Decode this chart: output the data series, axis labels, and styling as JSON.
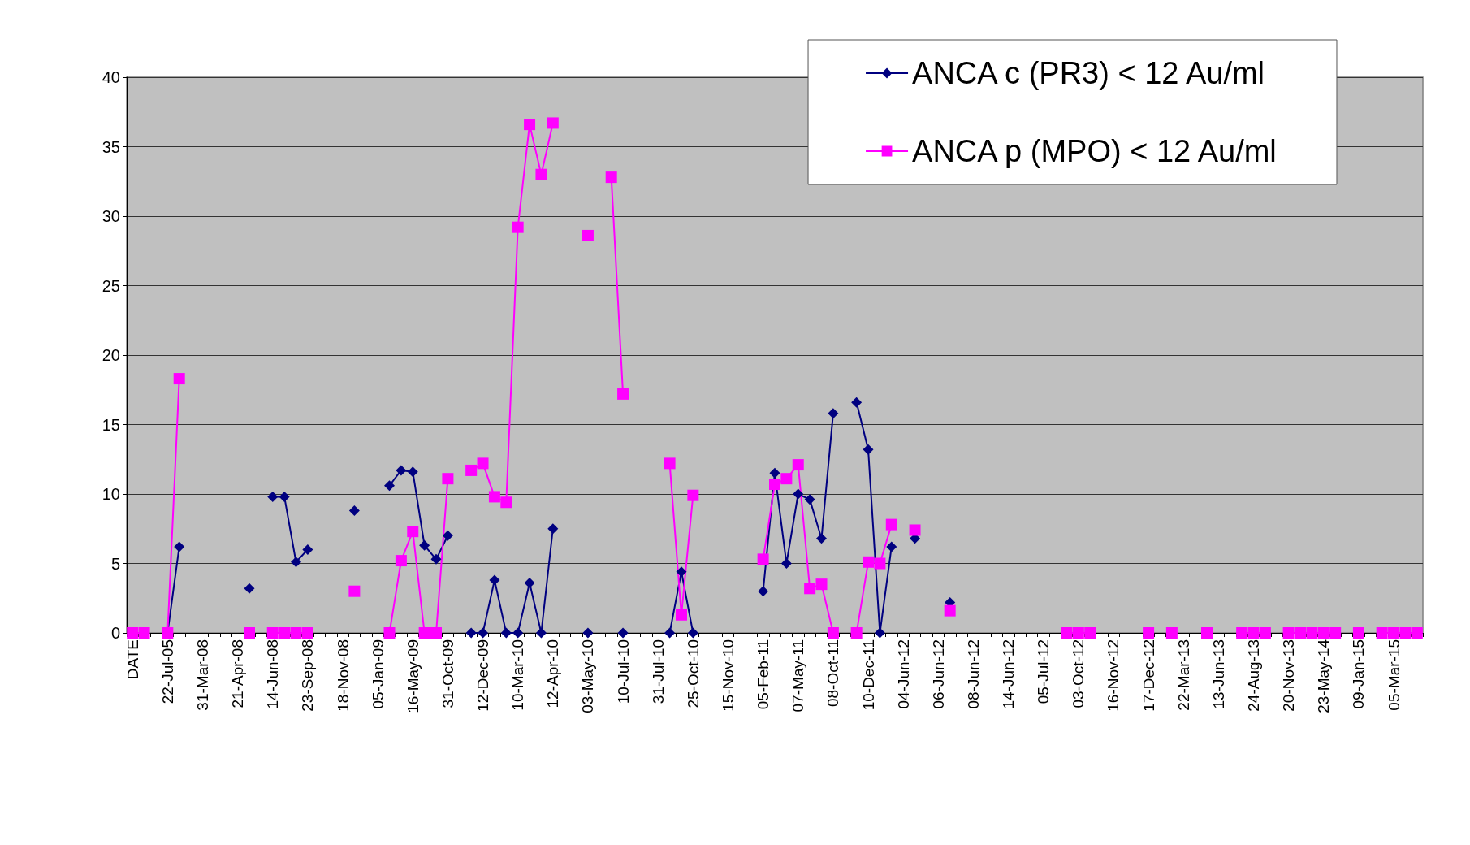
{
  "chart_data": {
    "type": "line",
    "categories": [
      "DATE",
      null,
      null,
      "22-Jul-05",
      null,
      null,
      "31-Mar-08",
      null,
      null,
      "21-Apr-08",
      null,
      null,
      "14-Jun-08",
      null,
      null,
      "23-Sep-08",
      null,
      null,
      "18-Nov-08",
      null,
      null,
      "05-Jan-09",
      null,
      null,
      "16-May-09",
      null,
      null,
      "31-Oct-09",
      null,
      null,
      "12-Dec-09",
      null,
      null,
      "10-Mar-10",
      null,
      null,
      "12-Apr-10",
      null,
      null,
      "03-May-10",
      null,
      null,
      "10-Jul-10",
      null,
      null,
      "31-Jul-10",
      null,
      null,
      "25-Oct-10",
      null,
      null,
      "15-Nov-10",
      null,
      null,
      "05-Feb-11",
      null,
      null,
      "07-May-11",
      null,
      null,
      "08-Oct-11",
      null,
      null,
      "10-Dec-11",
      null,
      null,
      "04-Jun-12",
      null,
      null,
      "06-Jun-12",
      null,
      null,
      "08-Jun-12",
      null,
      null,
      "14-Jun-12",
      null,
      null,
      "05-Jul-12",
      null,
      null,
      "03-Oct-12",
      null,
      null,
      "16-Nov-12",
      null,
      null,
      "17-Dec-12",
      null,
      null,
      "22-Mar-13",
      null,
      null,
      "13-Jun-13",
      null,
      null,
      "24-Aug-13",
      null,
      null,
      "20-Nov-13",
      null,
      null,
      "23-May-14",
      null,
      null,
      "09-Jan-15",
      null,
      null,
      "05-Mar-15",
      null,
      null
    ],
    "series": [
      {
        "name": "ANCA c (PR3) < 12 Au/ml",
        "color": "#000080",
        "marker": "diamond",
        "values": [
          null,
          null,
          null,
          0,
          6.2,
          null,
          null,
          null,
          null,
          null,
          3.2,
          null,
          9.8,
          9.8,
          5.1,
          6.0,
          null,
          null,
          null,
          8.8,
          null,
          null,
          10.6,
          11.7,
          11.6,
          6.3,
          5.3,
          7.0,
          null,
          0,
          0,
          3.8,
          0,
          0,
          3.6,
          0,
          7.5,
          null,
          null,
          0,
          null,
          null,
          0,
          null,
          null,
          null,
          0,
          4.4,
          0,
          null,
          null,
          null,
          null,
          null,
          3.0,
          11.5,
          5.0,
          10.0,
          9.6,
          6.8,
          15.8,
          null,
          16.6,
          13.2,
          0,
          6.2,
          null,
          6.8,
          null,
          null,
          2.2,
          null,
          null,
          null,
          null,
          null,
          null,
          null,
          null,
          null,
          null,
          null,
          null,
          null,
          null,
          null,
          null,
          null,
          null,
          null,
          null,
          null,
          null,
          null,
          null,
          null,
          null,
          null,
          null,
          null,
          null,
          null,
          null,
          null,
          null,
          null,
          null,
          null,
          null,
          null,
          null
        ]
      },
      {
        "name": "ANCA p (MPO) < 12 Au/ml",
        "color": "#ff00ff",
        "marker": "square",
        "values": [
          0,
          0,
          null,
          0,
          18.3,
          null,
          null,
          null,
          null,
          null,
          0,
          null,
          0,
          0,
          0,
          0,
          null,
          null,
          null,
          3.0,
          null,
          null,
          0,
          5.2,
          7.3,
          0,
          0,
          11.1,
          null,
          11.7,
          12.2,
          9.8,
          9.4,
          29.2,
          36.6,
          33.0,
          36.7,
          null,
          null,
          28.6,
          null,
          32.8,
          17.2,
          null,
          null,
          null,
          12.2,
          1.3,
          9.9,
          null,
          null,
          null,
          null,
          null,
          5.3,
          10.7,
          11.1,
          12.1,
          3.2,
          3.5,
          0,
          null,
          0,
          5.1,
          5.0,
          7.8,
          null,
          7.4,
          null,
          null,
          1.6,
          null,
          null,
          null,
          null,
          null,
          null,
          null,
          null,
          null,
          0,
          0,
          0,
          null,
          null,
          null,
          null,
          0,
          null,
          0,
          null,
          null,
          0,
          null,
          null,
          0,
          0,
          0,
          null,
          0,
          0,
          0,
          0,
          0,
          null,
          0,
          null,
          0,
          0,
          0,
          0
        ]
      }
    ],
    "ylim": [
      0,
      40
    ],
    "yticks": [
      0,
      5,
      10,
      15,
      20,
      25,
      30,
      35,
      40
    ],
    "grid": "y",
    "legend": "top right"
  }
}
